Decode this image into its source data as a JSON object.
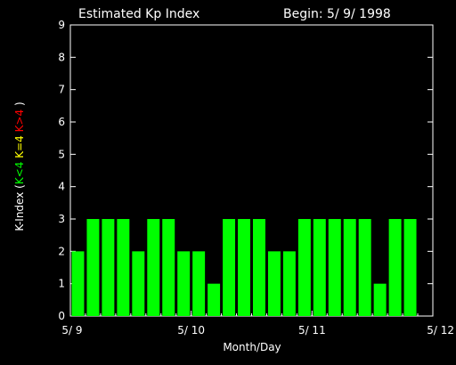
{
  "chart_data": {
    "type": "bar",
    "title": "Estimated Kp Index",
    "begin_label": "Begin: 5/ 9/ 1998",
    "xlabel": "Month/Day",
    "ylabel_parts": [
      {
        "text": "K-Index (",
        "color": "#ffffff"
      },
      {
        "text": "K<4",
        "color": "#00ff00"
      },
      {
        "text": " ",
        "color": "#ffffff"
      },
      {
        "text": "K=4",
        "color": "#ffff00"
      },
      {
        "text": " ",
        "color": "#ffffff"
      },
      {
        "text": "K>4",
        "color": "#ff0000"
      },
      {
        "text": " )",
        "color": "#ffffff"
      }
    ],
    "ylim": [
      0,
      9
    ],
    "yticks": [
      "0",
      "1",
      "2",
      "3",
      "4",
      "5",
      "6",
      "7",
      "8",
      "9"
    ],
    "xticks": [
      "5/ 9",
      "5/ 10",
      "5/ 11",
      "5/ 12"
    ],
    "values": [
      2,
      3,
      3,
      3,
      2,
      3,
      3,
      2,
      2,
      1,
      3,
      3,
      3,
      2,
      2,
      3,
      3,
      3,
      3,
      3,
      1,
      3,
      3
    ],
    "colors": {
      "low": "#00ff00",
      "mid": "#ffff00",
      "high": "#ff0000",
      "axis": "#ffffff",
      "background": "#000000"
    }
  }
}
